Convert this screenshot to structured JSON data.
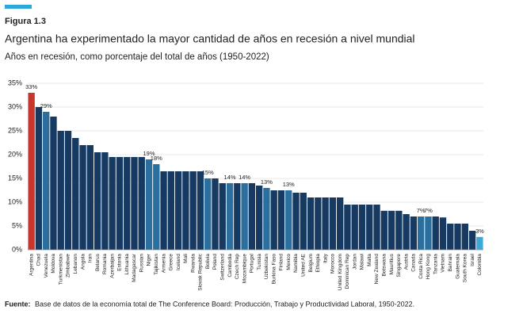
{
  "chart_data": {
    "type": "bar",
    "figure_label": "Figura 1.3",
    "title": "Argentina ha experimentado la mayor cantidad de años en recesión a nivel mundial",
    "subtitle": "Años en recesión, como porcentaje del total de años (1950-2022)",
    "source_label": "Fuente:",
    "source_text": "Base de datos de la economía total de The Conference Board: Producción, Trabajo y Productividad Laboral, 1950-2022.",
    "categories": [
      "Argentina",
      "Chad",
      "Venezuela",
      "Moldova",
      "Turkmenistan",
      "Zimbabwe",
      "Lebanon",
      "Angola",
      "Iran",
      "Belarus",
      "Romania",
      "Azerbaijan",
      "Estonia",
      "Lithuania",
      "Madagascar",
      "Russian",
      "Niger",
      "Tajikistan",
      "Armenia",
      "Greece",
      "Iceland",
      "Mali",
      "Rwanda",
      "Slovak Republic",
      "Bolivia",
      "Poland",
      "Switzerland",
      "Cambodia",
      "Czech Rep",
      "Mozambique",
      "Portugal",
      "Tunisia",
      "Uzbekistan",
      "Burkina Faso",
      "Finland",
      "Mexico",
      "Namibia",
      "United AE",
      "Belgium",
      "Ethiopia",
      "Italy",
      "Morocco",
      "United Kingdom",
      "Dominican Rep",
      "Jordan",
      "Malawi",
      "Malta",
      "New Zealand",
      "Botswana",
      "Mauritius",
      "Singapore",
      "Austria",
      "Canada",
      "Costa Rica",
      "Hong Kong",
      "Tanzania",
      "Vietnam",
      "Bahrain",
      "Guatemala",
      "South Korea",
      "Israel",
      "Colombia"
    ],
    "values": [
      33,
      30,
      29,
      28,
      25,
      25,
      23.5,
      22,
      22,
      20.5,
      20.5,
      19.5,
      19.5,
      19.5,
      19.5,
      19.5,
      19,
      18,
      16.5,
      16.5,
      16.5,
      16.5,
      16.5,
      16.5,
      15,
      15,
      14,
      14,
      14,
      14,
      14,
      13.5,
      13,
      12.5,
      12.5,
      12.5,
      12,
      12,
      11,
      11,
      11,
      11,
      11,
      9.5,
      9.5,
      9.5,
      9.5,
      9.5,
      8.2,
      8.2,
      8.2,
      7.5,
      7,
      7,
      7,
      7,
      6.8,
      5.5,
      5.5,
      5.5,
      4,
      2.7
    ],
    "value_labels": [
      "33%",
      null,
      "29%",
      null,
      null,
      null,
      null,
      null,
      null,
      null,
      null,
      null,
      null,
      null,
      null,
      null,
      "19%",
      "18%",
      null,
      null,
      null,
      null,
      null,
      null,
      "15%",
      null,
      null,
      "14%",
      null,
      "14%",
      null,
      null,
      "13%",
      null,
      null,
      "13%",
      null,
      null,
      null,
      null,
      null,
      null,
      null,
      null,
      null,
      null,
      null,
      null,
      null,
      null,
      null,
      null,
      null,
      "7%",
      "7%",
      null,
      null,
      null,
      null,
      null,
      null,
      "3%"
    ],
    "color": "#173a63",
    "highlight_color": "#2a6f9e",
    "lead_color": "#c8372d",
    "last_color": "#3fa8d8",
    "ylim": [
      0,
      35
    ],
    "yticks": [
      {
        "value": 0,
        "label": "0%"
      },
      {
        "value": 5,
        "label": "5%"
      },
      {
        "value": 10,
        "label": "10%"
      },
      {
        "value": 15,
        "label": "15%"
      },
      {
        "value": 20,
        "label": "20%"
      },
      {
        "value": 25,
        "label": "25%"
      },
      {
        "value": 30,
        "label": "30%"
      },
      {
        "value": 35,
        "label": "35%"
      }
    ],
    "grid": true
  }
}
